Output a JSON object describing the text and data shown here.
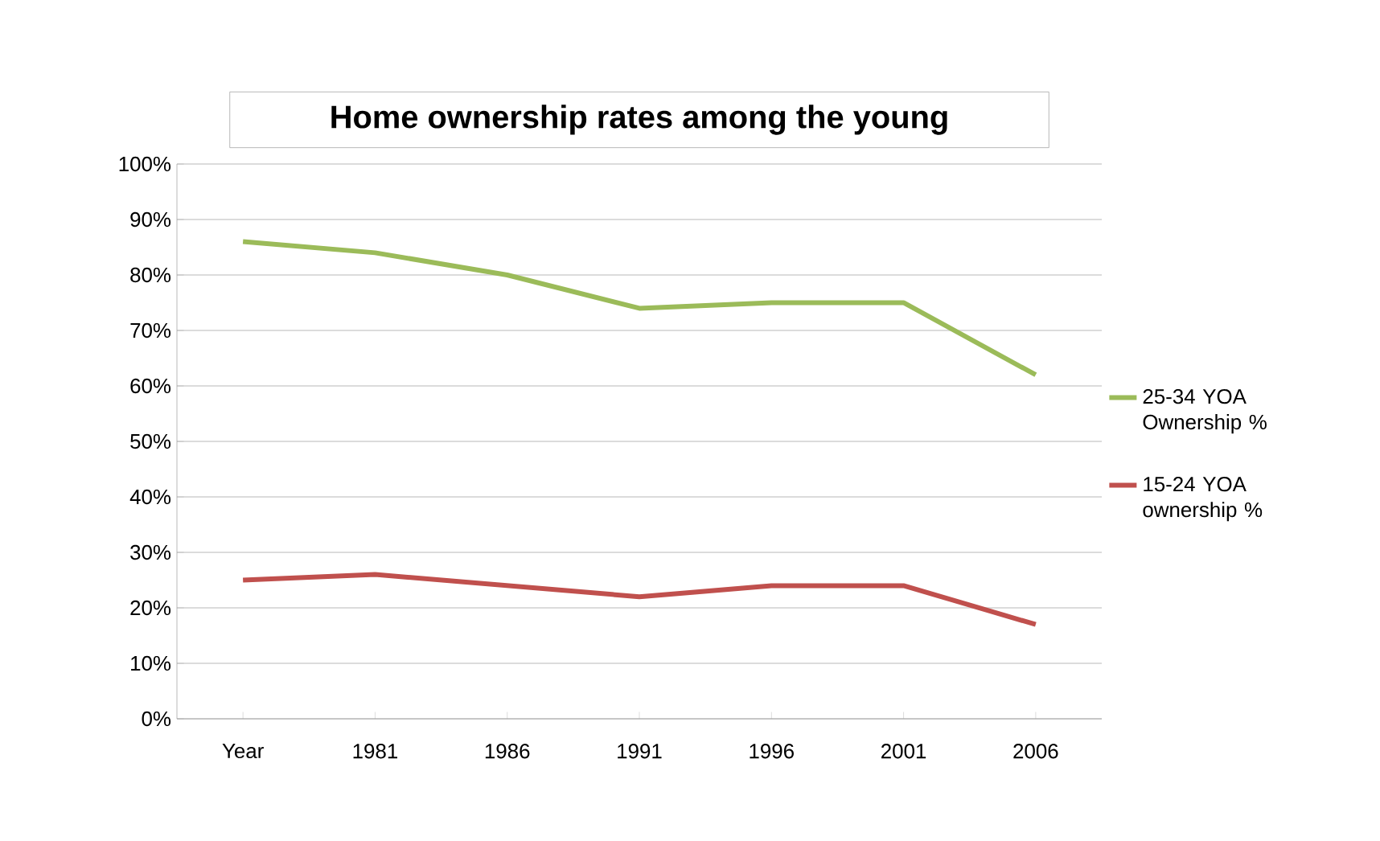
{
  "chart_data": {
    "type": "line",
    "title": "Home ownership rates among the young",
    "categories": [
      "Year",
      "1981",
      "1986",
      "1991",
      "1996",
      "2001",
      "2006"
    ],
    "series": [
      {
        "name": "25-34 YOA Ownership %",
        "color": "#9bbb59",
        "values": [
          86,
          84,
          80,
          74,
          75,
          75,
          62
        ]
      },
      {
        "name": "15-24 YOA ownership %",
        "color": "#c0504d",
        "values": [
          25,
          26,
          24,
          22,
          24,
          24,
          17
        ]
      }
    ],
    "ylim": [
      0,
      100
    ],
    "yticks": [
      {
        "value": 0,
        "label": "0%"
      },
      {
        "value": 10,
        "label": "10%"
      },
      {
        "value": 20,
        "label": "20%"
      },
      {
        "value": 30,
        "label": "30%"
      },
      {
        "value": 40,
        "label": "40%"
      },
      {
        "value": 50,
        "label": "50%"
      },
      {
        "value": 60,
        "label": "60%"
      },
      {
        "value": 70,
        "label": "70%"
      },
      {
        "value": 80,
        "label": "80%"
      },
      {
        "value": 90,
        "label": "90%"
      },
      {
        "value": 100,
        "label": "100%"
      }
    ],
    "grid": "y",
    "legend": "right",
    "marker": "none",
    "line_style": "solid"
  }
}
